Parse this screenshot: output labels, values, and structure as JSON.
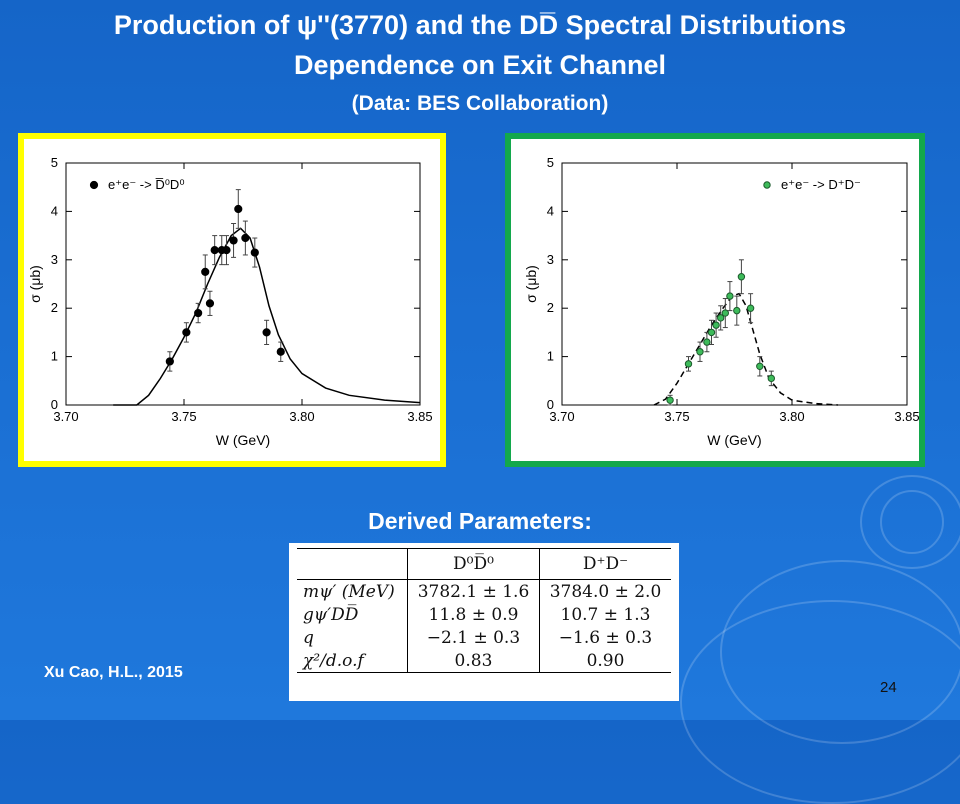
{
  "slide": {
    "title_line1": "Production of ψ''(3770) and the DD̅ Spectral Distributions",
    "title_line2": "Dependence on  Exit Channel",
    "title_line3": "(Data: BES Collaboration)",
    "derived_heading": "Derived Parameters:",
    "author": "Xu Cao, H.L., 2015",
    "page_number": "24"
  },
  "colors": {
    "background": "#1a6ed2",
    "left_frame": "#ffff00",
    "right_frame": "#13a84c",
    "marker_green": "#3dbb5a"
  },
  "chart_data": [
    {
      "type": "scatter",
      "xlabel": "W (GeV)",
      "ylabel": "σ (μb)",
      "xlim": [
        3.7,
        3.85
      ],
      "ylim": [
        0,
        5
      ],
      "xticks": [
        "3.70",
        "3.75",
        "3.80",
        "3.85"
      ],
      "yticks": [
        "0",
        "1",
        "2",
        "3",
        "4",
        "5"
      ],
      "legend_position": "top-left",
      "series": [
        {
          "name": "e⁺e⁻ -> D̅⁰D⁰",
          "marker": "filled-circle-black",
          "points": [
            {
              "x": 3.744,
              "y": 0.9,
              "err": 0.2
            },
            {
              "x": 3.751,
              "y": 1.5,
              "err": 0.2
            },
            {
              "x": 3.756,
              "y": 1.9,
              "err": 0.2
            },
            {
              "x": 3.759,
              "y": 2.75,
              "err": 0.35
            },
            {
              "x": 3.761,
              "y": 2.1,
              "err": 0.25
            },
            {
              "x": 3.763,
              "y": 3.2,
              "err": 0.3
            },
            {
              "x": 3.766,
              "y": 3.2,
              "err": 0.3
            },
            {
              "x": 3.768,
              "y": 3.2,
              "err": 0.3
            },
            {
              "x": 3.771,
              "y": 3.4,
              "err": 0.35
            },
            {
              "x": 3.773,
              "y": 4.05,
              "err": 0.4
            },
            {
              "x": 3.776,
              "y": 3.45,
              "err": 0.35
            },
            {
              "x": 3.78,
              "y": 3.15,
              "err": 0.3
            },
            {
              "x": 3.785,
              "y": 1.5,
              "err": 0.25
            },
            {
              "x": 3.791,
              "y": 1.1,
              "err": 0.2
            }
          ],
          "fit_curve": {
            "style": "solid",
            "points": [
              [
                3.72,
                0
              ],
              [
                3.73,
                0.0
              ],
              [
                3.735,
                0.2
              ],
              [
                3.74,
                0.55
              ],
              [
                3.745,
                0.95
              ],
              [
                3.75,
                1.4
              ],
              [
                3.755,
                1.9
              ],
              [
                3.76,
                2.5
              ],
              [
                3.765,
                3.05
              ],
              [
                3.77,
                3.5
              ],
              [
                3.774,
                3.65
              ],
              [
                3.778,
                3.45
              ],
              [
                3.782,
                2.85
              ],
              [
                3.786,
                2.05
              ],
              [
                3.79,
                1.45
              ],
              [
                3.795,
                0.95
              ],
              [
                3.8,
                0.65
              ],
              [
                3.81,
                0.35
              ],
              [
                3.82,
                0.2
              ],
              [
                3.835,
                0.1
              ],
              [
                3.85,
                0.05
              ]
            ]
          }
        }
      ]
    },
    {
      "type": "scatter",
      "xlabel": "W (GeV)",
      "ylabel": "σ (μb)",
      "xlim": [
        3.7,
        3.85
      ],
      "ylim": [
        0,
        5
      ],
      "xticks": [
        "3.70",
        "3.75",
        "3.80",
        "3.85"
      ],
      "yticks": [
        "0",
        "1",
        "2",
        "3",
        "4",
        "5"
      ],
      "legend_position": "top-right",
      "series": [
        {
          "name": "e⁺e⁻ -> D⁺D⁻",
          "marker": "green-circle",
          "points": [
            {
              "x": 3.747,
              "y": 0.1,
              "err": 0.1
            },
            {
              "x": 3.755,
              "y": 0.85,
              "err": 0.15
            },
            {
              "x": 3.76,
              "y": 1.1,
              "err": 0.2
            },
            {
              "x": 3.763,
              "y": 1.3,
              "err": 0.2
            },
            {
              "x": 3.765,
              "y": 1.5,
              "err": 0.25
            },
            {
              "x": 3.767,
              "y": 1.65,
              "err": 0.25
            },
            {
              "x": 3.769,
              "y": 1.8,
              "err": 0.25
            },
            {
              "x": 3.771,
              "y": 1.9,
              "err": 0.3
            },
            {
              "x": 3.773,
              "y": 2.25,
              "err": 0.3
            },
            {
              "x": 3.776,
              "y": 1.95,
              "err": 0.3
            },
            {
              "x": 3.778,
              "y": 2.65,
              "err": 0.35
            },
            {
              "x": 3.782,
              "y": 2.0,
              "err": 0.3
            },
            {
              "x": 3.786,
              "y": 0.8,
              "err": 0.2
            },
            {
              "x": 3.791,
              "y": 0.55,
              "err": 0.15
            }
          ],
          "fit_curve": {
            "style": "dashed",
            "points": [
              [
                3.74,
                0.0
              ],
              [
                3.745,
                0.12
              ],
              [
                3.75,
                0.45
              ],
              [
                3.755,
                0.85
              ],
              [
                3.76,
                1.25
              ],
              [
                3.765,
                1.65
              ],
              [
                3.77,
                2.0
              ],
              [
                3.774,
                2.25
              ],
              [
                3.777,
                2.3
              ],
              [
                3.78,
                2.05
              ],
              [
                3.783,
                1.55
              ],
              [
                3.786,
                1.05
              ],
              [
                3.79,
                0.55
              ],
              [
                3.795,
                0.25
              ],
              [
                3.8,
                0.1
              ],
              [
                3.81,
                0.03
              ],
              [
                3.82,
                0.0
              ]
            ]
          }
        }
      ]
    }
  ],
  "table": {
    "col_headers": [
      "D⁰D̅⁰",
      "D⁺D⁻"
    ],
    "rows": [
      {
        "label": "mψ′ (MeV)",
        "a": "3782.1 ± 1.6",
        "b": "3784.0 ± 2.0"
      },
      {
        "label": "gψ′DD̅",
        "a": "11.8 ± 0.9",
        "b": "10.7 ± 1.3"
      },
      {
        "label": "q",
        "a": "−2.1 ± 0.3",
        "b": "−1.6 ± 0.3"
      },
      {
        "label": "χ²/d.o.f",
        "a": "0.83",
        "b": "0.90"
      }
    ]
  }
}
